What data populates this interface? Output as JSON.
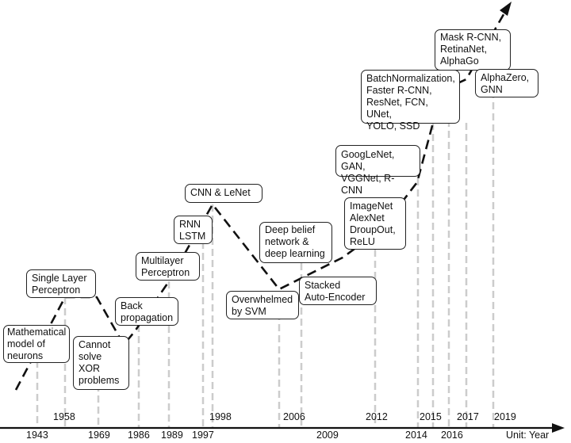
{
  "milestones": {
    "neurons": "Mathematical\nmodel of\nneurons",
    "single_layer": "Single Layer\nPerceptron",
    "xor": "Cannot\nsolve\nXOR\nproblems",
    "backprop": "Back\npropagation",
    "multilayer": "Multilayer\nPerceptron",
    "rnn": "RNN\nLSTM",
    "cnn": "CNN & LeNet",
    "svm": "Overwhelmed\nby SVM",
    "deep_belief": "Deep belief\nnetwork &\ndeep learning",
    "autoencoder": "Stacked\nAuto-Encoder",
    "imagenet": "ImageNet\nAlexNet\nDroupOut,\nReLU",
    "googlenet": "GoogLeNet, GAN,\nVGGNet, R-CNN",
    "batchnorm": "BatchNormalization,\nFaster R-CNN,\nResNet, FCN, UNet,\nYOLO, SSD",
    "maskrcnn": "Mask R-CNN,\nRetinaNet,\nAlphaGo",
    "alphazero": "AlphaZero,\nGNN"
  },
  "years": {
    "y1943": "1943",
    "y1958": "1958",
    "y1969": "1969",
    "y1986": "1986",
    "y1989": "1989",
    "y1997": "1997",
    "y1998": "1998",
    "y2006": "2006",
    "y2009": "2009",
    "y2012": "2012",
    "y2014": "2014",
    "y2015": "2015",
    "y2016": "2016",
    "y2017": "2017",
    "y2019": "2019"
  },
  "unit_label": "Unit: Year",
  "colors": {
    "axis": "#111111",
    "trend": "#111111",
    "guide": "#cccccc"
  }
}
